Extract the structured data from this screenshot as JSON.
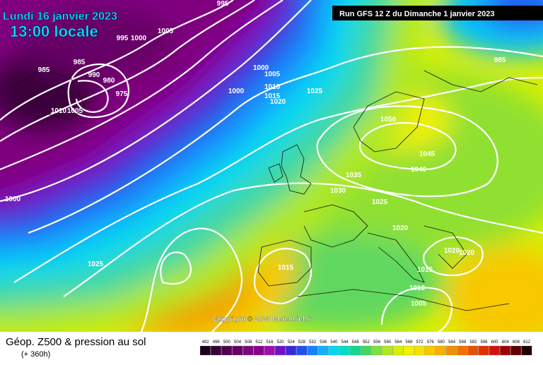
{
  "header": {
    "date": "Lundi 16 janvier 2023",
    "time": "13:00 locale"
  },
  "run_info": "Run GFS 12 Z du Dimanche 1 janvier 2023",
  "copyright": "Copyright © 2023 Meteociel.fr",
  "footer": {
    "title": "Géop. Z500 & pression au sol",
    "lead_time": "(+ 360h)"
  },
  "legend": {
    "values": [
      492,
      496,
      500,
      504,
      508,
      512,
      516,
      520,
      524,
      528,
      532,
      536,
      540,
      544,
      548,
      552,
      556,
      560,
      564,
      568,
      572,
      576,
      580,
      584,
      588,
      592,
      596,
      600,
      604,
      608,
      612
    ],
    "colors": [
      "#1a001a",
      "#33003a",
      "#4d004f",
      "#660066",
      "#7a0a7a",
      "#8c008c",
      "#9a10b0",
      "#7010c8",
      "#3c28dc",
      "#2050f0",
      "#1880ff",
      "#10b0ff",
      "#00d8f0",
      "#00e0c0",
      "#10d890",
      "#40d860",
      "#80e040",
      "#b0e820",
      "#d8f000",
      "#f0f000",
      "#f8e000",
      "#f8c800",
      "#f8b000",
      "#f09000",
      "#f07000",
      "#e85000",
      "#e03000",
      "#d01010",
      "#a00000",
      "#600000",
      "#200000"
    ]
  },
  "isobar_labels": [
    995,
    995,
    1000,
    1005,
    985,
    985,
    990,
    980,
    975,
    1010,
    1005,
    1000,
    1005,
    1000,
    1010,
    1015,
    1020,
    1025,
    1050,
    1045,
    1040,
    1035,
    1030,
    1025,
    1020,
    1020,
    1020,
    1025,
    1015,
    1015,
    1010,
    1005,
    1000,
    985
  ]
}
